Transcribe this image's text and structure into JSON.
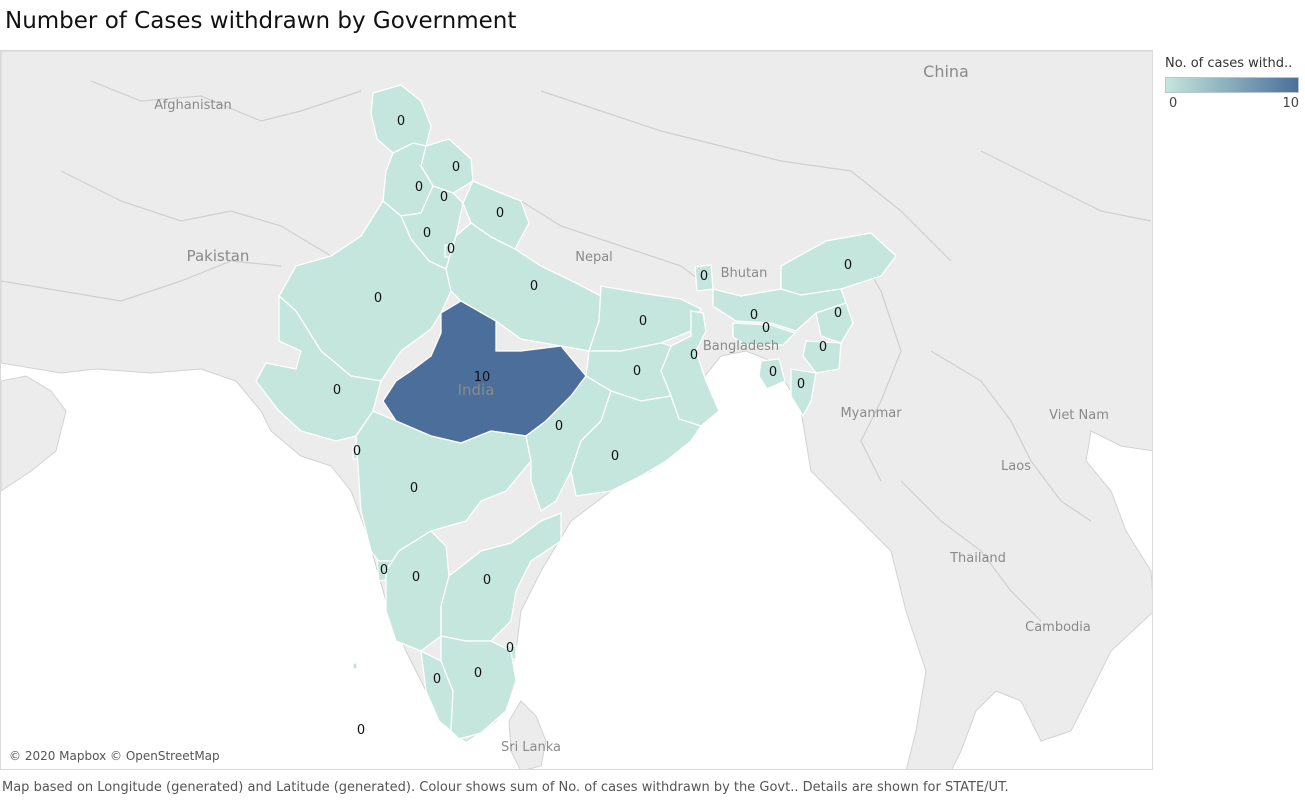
{
  "title": "Number of Cases withdrawn by Government",
  "map": {
    "country_labels": [
      {
        "name": "Afghanistan",
        "key": "afghanistan"
      },
      {
        "name": "Pakistan",
        "key": "pakistan"
      },
      {
        "name": "China",
        "key": "china"
      },
      {
        "name": "Nepal",
        "key": "nepal"
      },
      {
        "name": "Bhutan",
        "key": "bhutan"
      },
      {
        "name": "Bangladesh",
        "key": "bangladesh"
      },
      {
        "name": "India",
        "key": "india"
      },
      {
        "name": "Myanmar",
        "key": "myanmar"
      },
      {
        "name": "Viet Nam",
        "key": "vietnam"
      },
      {
        "name": "Laos",
        "key": "laos"
      },
      {
        "name": "Thailand",
        "key": "thailand"
      },
      {
        "name": "Cambodia",
        "key": "cambodia"
      },
      {
        "name": "Sri Lanka",
        "key": "srilanka"
      }
    ],
    "attribution": "© 2020 Mapbox © OpenStreetMap"
  },
  "regions": [
    {
      "key": "jk",
      "value": 0
    },
    {
      "key": "hp",
      "value": 0
    },
    {
      "key": "pb",
      "value": 0
    },
    {
      "key": "ch",
      "value": 0
    },
    {
      "key": "uk",
      "value": 0
    },
    {
      "key": "hr",
      "value": 0
    },
    {
      "key": "dl",
      "value": 0
    },
    {
      "key": "rj",
      "value": 0
    },
    {
      "key": "up",
      "value": 0
    },
    {
      "key": "br",
      "value": 0
    },
    {
      "key": "sk",
      "value": 0
    },
    {
      "key": "ar",
      "value": 0
    },
    {
      "key": "as",
      "value": 0
    },
    {
      "key": "ml",
      "value": 0
    },
    {
      "key": "nl",
      "value": 0
    },
    {
      "key": "mn",
      "value": 0
    },
    {
      "key": "tr",
      "value": 0
    },
    {
      "key": "mz",
      "value": 0
    },
    {
      "key": "wb",
      "value": 0
    },
    {
      "key": "jh",
      "value": 0
    },
    {
      "key": "gj",
      "value": 0
    },
    {
      "key": "mp",
      "value": 10
    },
    {
      "key": "dd",
      "value": 0
    },
    {
      "key": "mh",
      "value": 0
    },
    {
      "key": "cg",
      "value": 0
    },
    {
      "key": "od",
      "value": 0
    },
    {
      "key": "ga",
      "value": 0
    },
    {
      "key": "ka",
      "value": 0
    },
    {
      "key": "ap",
      "value": 0
    },
    {
      "key": "py",
      "value": 0
    },
    {
      "key": "kl",
      "value": 0
    },
    {
      "key": "tn",
      "value": 0
    },
    {
      "key": "ld",
      "value": 0
    }
  ],
  "legend": {
    "title": "No. of cases withd..",
    "min": 0,
    "max": 10,
    "min_label": "0",
    "max_label": "10",
    "color_min": "#c4e6dc",
    "color_max": "#4b6f9a"
  },
  "footer": "Map based on Longitude (generated) and Latitude (generated).  Colour shows sum of No. of cases withdrawn by the Govt..  Details are shown for STATE/UT."
}
